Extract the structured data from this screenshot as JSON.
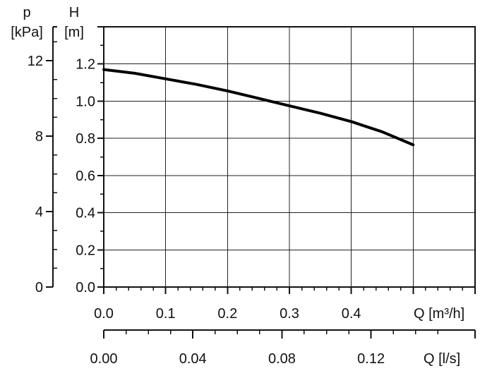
{
  "chart_data": {
    "type": "line",
    "title": "",
    "grid": true,
    "y_axes": [
      {
        "id": "p",
        "label": "p",
        "unit": "[kPa]",
        "range": [
          0,
          13.8
        ],
        "ticks": [
          0,
          4,
          8,
          12
        ],
        "tick_labels": [
          "0",
          "4",
          "8",
          "12"
        ]
      },
      {
        "id": "H",
        "label": "H",
        "unit": "[m]",
        "range": [
          0,
          1.4
        ],
        "ticks": [
          0,
          0.2,
          0.4,
          0.6,
          0.8,
          1.0,
          1.2,
          1.4
        ],
        "tick_labels": [
          "0.0",
          "0.2",
          "0.4",
          "0.6",
          "0.8",
          "1.0",
          "1.2",
          ""
        ]
      }
    ],
    "x_axes": [
      {
        "id": "Q_m3h",
        "label": "Q [m³/h]",
        "range": [
          0,
          0.6
        ],
        "ticks": [
          0,
          0.1,
          0.2,
          0.3,
          0.4,
          0.5,
          0.6
        ],
        "tick_labels": [
          "0.0",
          "0.1",
          "0.2",
          "0.3",
          "0.4",
          "",
          ""
        ]
      },
      {
        "id": "Q_ls",
        "label": "Q [l/s]",
        "range": [
          0,
          0.1667
        ],
        "ticks": [
          0,
          0.04,
          0.08,
          0.12
        ],
        "tick_labels": [
          "0.00",
          "0.04",
          "0.08",
          "0.12"
        ]
      }
    ],
    "series": [
      {
        "values": [
          {
            "x": 0.0,
            "y": 1.17
          },
          {
            "x": 0.05,
            "y": 1.15
          },
          {
            "x": 0.1,
            "y": 1.12
          },
          {
            "x": 0.15,
            "y": 1.09
          },
          {
            "x": 0.2,
            "y": 1.055
          },
          {
            "x": 0.25,
            "y": 1.015
          },
          {
            "x": 0.3,
            "y": 0.975
          },
          {
            "x": 0.35,
            "y": 0.935
          },
          {
            "x": 0.4,
            "y": 0.89
          },
          {
            "x": 0.45,
            "y": 0.835
          },
          {
            "x": 0.5,
            "y": 0.765
          }
        ]
      }
    ]
  }
}
